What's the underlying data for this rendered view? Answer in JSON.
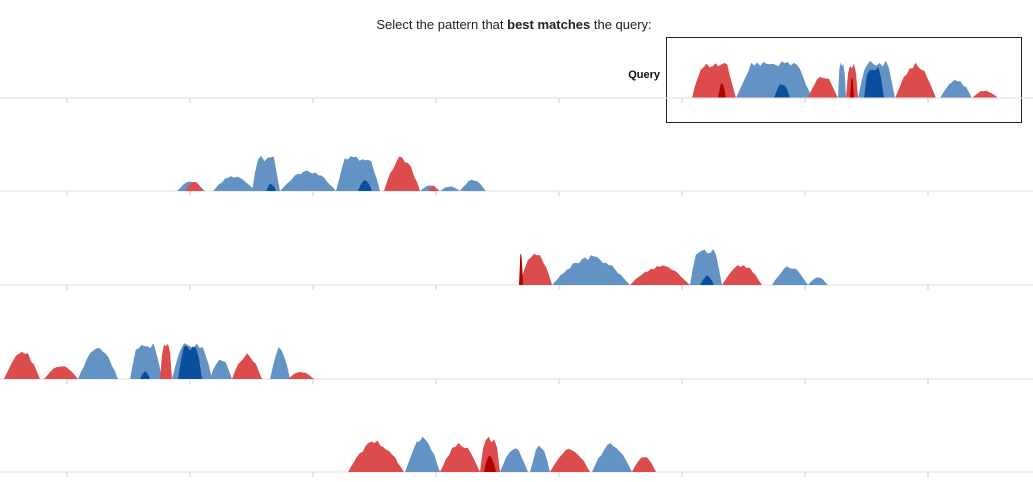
{
  "prompt": {
    "before": "Select the pattern that ",
    "bold": "best matches",
    "after": " the query:"
  },
  "query": {
    "label": "Query"
  },
  "colors": {
    "red_light": "#dc4c4c",
    "red_dark": "#b00000",
    "blue_light": "#6393c4",
    "blue_dark": "#0a4f9e"
  },
  "options": [
    {
      "id": "option-1"
    },
    {
      "id": "option-2"
    },
    {
      "id": "option-3"
    },
    {
      "id": "option-4"
    }
  ]
}
